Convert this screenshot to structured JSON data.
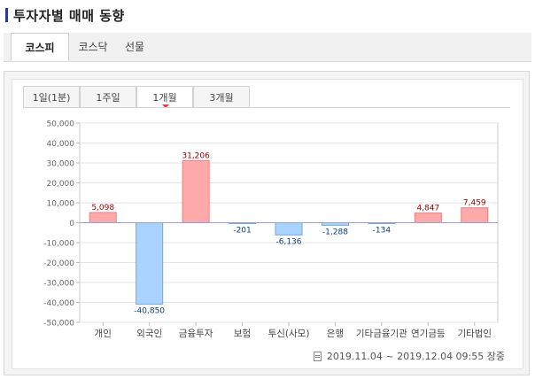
{
  "header": {
    "title": "투자자별 매매 동향"
  },
  "market_tabs": [
    {
      "label": "코스피",
      "active": true
    },
    {
      "label": "코스닥",
      "active": false
    },
    {
      "label": "선물",
      "active": false
    }
  ],
  "period_tabs": [
    {
      "label": "1일(1분)",
      "active": false
    },
    {
      "label": "1주일",
      "active": false
    },
    {
      "label": "1개월",
      "active": true
    },
    {
      "label": "3개월",
      "active": false
    }
  ],
  "footer": {
    "date_range": "2019.11.04 ~ 2019.12.04 09:55 장중",
    "icon": "document-icon"
  },
  "colors": {
    "positive_fill": "#ffaaaa",
    "positive_stroke": "#e87f7f",
    "positive_label": "#990000",
    "negative_fill": "#aad4ff",
    "negative_stroke": "#6fa8e0",
    "negative_label": "#0b3e78",
    "accent": "#e23b3b"
  },
  "chart_data": {
    "type": "bar",
    "categories": [
      "개인",
      "외국인",
      "금융투자",
      "보험",
      "투신(사모)",
      "은행",
      "기타금융기관",
      "연기금등",
      "기타법인"
    ],
    "values": [
      5098,
      -40850,
      31206,
      -201,
      -6136,
      -1288,
      -134,
      4847,
      7459
    ],
    "value_labels": [
      "5,098",
      "-40,850",
      "31,206",
      "-201",
      "-6,136",
      "-1,288",
      "-134",
      "4,847",
      "7,459"
    ],
    "yticks": [
      "50,000",
      "40,000",
      "30,000",
      "20,000",
      "10,000",
      "0",
      "-10,000",
      "-20,000",
      "-30,000",
      "-40,000",
      "-50,000"
    ],
    "ylim": [
      -50000,
      50000
    ],
    "grid": true,
    "title": "",
    "xlabel": "",
    "ylabel": ""
  }
}
